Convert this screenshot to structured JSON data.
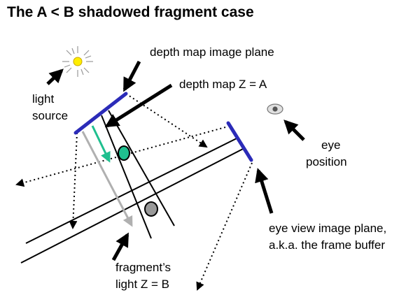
{
  "title": "The A < B shadowed fragment case",
  "labels": {
    "depth_map_plane": "depth map image plane",
    "depth_map_z": "depth map Z  = A",
    "light_source_line1": "light",
    "light_source_line2": "source",
    "eye_position_line1": "eye",
    "eye_position_line2": "position",
    "eye_view_line1": "eye view image plane,",
    "eye_view_line2": "a.k.a. the frame buffer",
    "fragment_line1": "fragment’s",
    "fragment_line2": "light Z = B"
  },
  "colors": {
    "image_plane": "#2b2bb8",
    "depth_point": "#1fbf8f",
    "depth_ray": "#1fbf8f",
    "fragment_point": "#999999",
    "fragment_ray": "#b0b0b0",
    "sun": "#ffee00",
    "lines": "#000000"
  },
  "icons": {
    "light": "sun-icon",
    "eye": "eye-icon"
  }
}
